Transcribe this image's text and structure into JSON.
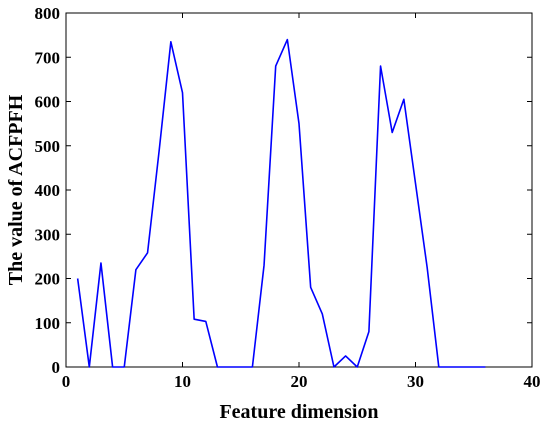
{
  "chart_data": {
    "type": "line",
    "title": "",
    "xlabel": "Feature dimension",
    "ylabel": "The value of ACFPFH",
    "xlim": [
      0,
      40
    ],
    "ylim": [
      0,
      800
    ],
    "xticks": [
      0,
      10,
      20,
      30,
      40
    ],
    "yticks": [
      0,
      100,
      200,
      300,
      400,
      500,
      600,
      700,
      800
    ],
    "xtick_labels": [
      "0",
      "10",
      "20",
      "30",
      "40"
    ],
    "ytick_labels": [
      "0",
      "100",
      "200",
      "300",
      "400",
      "500",
      "600",
      "700",
      "800"
    ],
    "grid": false,
    "legend": "none",
    "series": [
      {
        "color": "#0000ff",
        "x": [
          1,
          2,
          3,
          4,
          5,
          6,
          7,
          8,
          9,
          10,
          11,
          12,
          13,
          14,
          15,
          16,
          17,
          18,
          19,
          20,
          21,
          22,
          23,
          24,
          25,
          26,
          27,
          28,
          29,
          30,
          31,
          32,
          33,
          34,
          35,
          36
        ],
        "y": [
          200,
          0,
          235,
          0,
          0,
          220,
          258,
          490,
          735,
          620,
          108,
          103,
          0,
          0,
          0,
          0,
          230,
          680,
          740,
          550,
          180,
          120,
          0,
          25,
          0,
          80,
          680,
          530,
          605,
          415,
          225,
          0,
          0,
          0,
          0,
          0
        ]
      }
    ]
  }
}
